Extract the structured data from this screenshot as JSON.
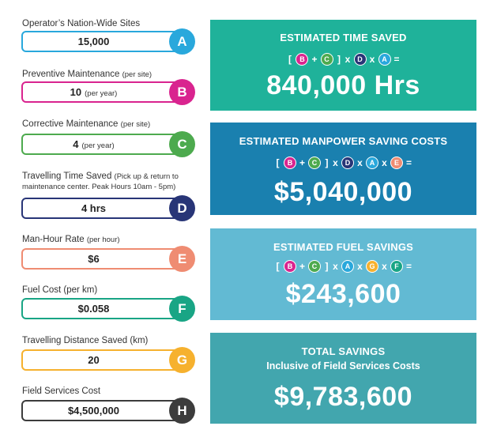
{
  "colors": {
    "A": "#29a8dc",
    "B": "#d9248f",
    "C": "#4daa4e",
    "D": "#283577",
    "E": "#ef8c72",
    "F": "#19a585",
    "G": "#f6b12e",
    "H": "#3c3c3c",
    "card_time": "#1fb29a",
    "card_manpower": "#1a80af",
    "card_fuel": "#62bad3",
    "card_total": "#42a6ae"
  },
  "inputs": [
    {
      "letter": "A",
      "label": "Operator’s Nation-Wide Sites",
      "label_note": "",
      "value": "15,000",
      "unit": ""
    },
    {
      "letter": "B",
      "label": "Preventive Maintenance",
      "label_note": "(per site)",
      "value": "10",
      "unit": "(per year)"
    },
    {
      "letter": "C",
      "label": "Corrective Maintenance",
      "label_note": "(per site)",
      "value": "4",
      "unit": "(per year)"
    },
    {
      "letter": "D",
      "label": "Travelling Time Saved",
      "label_note": "(Pick up & return to maintenance center. Peak Hours 10am - 5pm)",
      "value": "4 hrs",
      "unit": ""
    },
    {
      "letter": "E",
      "label": "Man-Hour Rate",
      "label_note": "(per hour)",
      "value": "$6",
      "unit": ""
    },
    {
      "letter": "F",
      "label": "Fuel Cost (per km)",
      "label_note": "",
      "value": "$0.058",
      "unit": ""
    },
    {
      "letter": "G",
      "label": "Travelling Distance Saved (km)",
      "label_note": "",
      "value": "20",
      "unit": ""
    },
    {
      "letter": "H",
      "label": "Field Services Cost",
      "label_note": "",
      "value": "$4,500,000",
      "unit": ""
    }
  ],
  "cards": {
    "time": {
      "title": "ESTIMATED TIME SAVED",
      "formula": [
        "[",
        "B",
        "+",
        "C",
        "]",
        "x",
        "D",
        "x",
        "A",
        "="
      ],
      "amount": "840,000 Hrs"
    },
    "manpower": {
      "title": "ESTIMATED MANPOWER SAVING COSTS",
      "formula": [
        "[",
        "B",
        "+",
        "C",
        "]",
        "x",
        "D",
        "x",
        "A",
        "x",
        "E",
        "="
      ],
      "amount": "$5,040,000"
    },
    "fuel": {
      "title": "ESTIMATED FUEL SAVINGS",
      "formula": [
        "[",
        "B",
        "+",
        "C",
        "]",
        "x",
        "A",
        "x",
        "G",
        "x",
        "F",
        "="
      ],
      "amount": "$243,600"
    },
    "total": {
      "title": "TOTAL SAVINGS",
      "subtitle": "Inclusive of Field Services Costs",
      "amount": "$9,783,600"
    }
  }
}
